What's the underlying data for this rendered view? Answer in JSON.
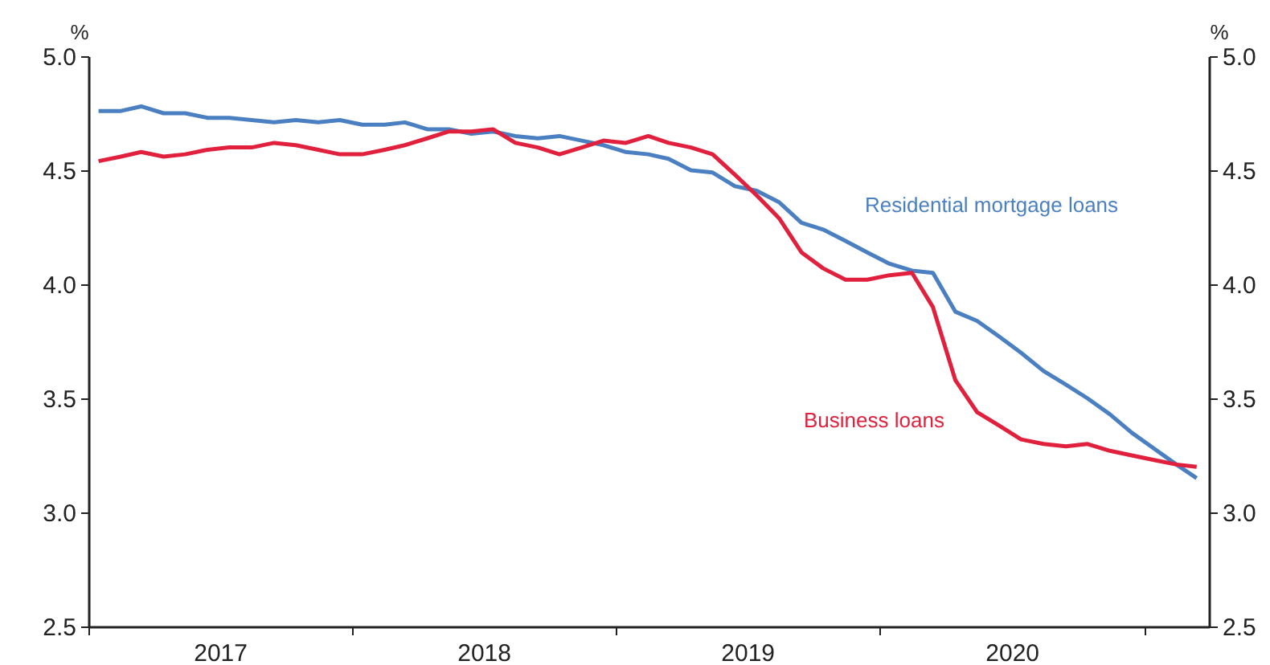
{
  "chart_data": {
    "type": "line",
    "x": [
      "2017-01-15",
      "2017-02-15",
      "2017-03-15",
      "2017-04-15",
      "2017-05-15",
      "2017-06-15",
      "2017-07-15",
      "2017-08-15",
      "2017-09-15",
      "2017-10-15",
      "2017-11-15",
      "2017-12-15",
      "2018-01-15",
      "2018-02-15",
      "2018-03-15",
      "2018-04-15",
      "2018-05-15",
      "2018-06-15",
      "2018-07-15",
      "2018-08-15",
      "2018-09-15",
      "2018-10-15",
      "2018-11-15",
      "2018-12-15",
      "2019-01-15",
      "2019-02-15",
      "2019-03-15",
      "2019-04-15",
      "2019-05-15",
      "2019-06-15",
      "2019-07-15",
      "2019-08-15",
      "2019-09-15",
      "2019-10-15",
      "2019-11-15",
      "2019-12-15",
      "2020-01-15",
      "2020-02-15",
      "2020-03-15",
      "2020-04-15",
      "2020-05-15",
      "2020-06-15",
      "2020-07-15",
      "2020-08-15",
      "2020-09-15",
      "2020-10-15",
      "2020-11-15",
      "2020-12-15",
      "2021-01-15",
      "2021-02-15",
      "2021-03-15"
    ],
    "series": [
      {
        "name": "Residential mortgage loans",
        "color": "#4a7fc1",
        "values": [
          4.76,
          4.76,
          4.78,
          4.75,
          4.75,
          4.73,
          4.73,
          4.72,
          4.71,
          4.72,
          4.71,
          4.72,
          4.7,
          4.7,
          4.71,
          4.68,
          4.68,
          4.66,
          4.67,
          4.65,
          4.64,
          4.65,
          4.63,
          4.61,
          4.58,
          4.57,
          4.55,
          4.5,
          4.49,
          4.43,
          4.41,
          4.36,
          4.27,
          4.24,
          4.19,
          4.14,
          4.09,
          4.06,
          4.05,
          3.88,
          3.84,
          3.77,
          3.7,
          3.62,
          3.56,
          3.5,
          3.43,
          3.35,
          3.28,
          3.21,
          3.15
        ]
      },
      {
        "name": "Business loans",
        "color": "#e0203c",
        "values": [
          4.54,
          4.56,
          4.58,
          4.56,
          4.57,
          4.59,
          4.6,
          4.6,
          4.62,
          4.61,
          4.59,
          4.57,
          4.57,
          4.59,
          4.61,
          4.64,
          4.67,
          4.67,
          4.68,
          4.62,
          4.6,
          4.57,
          4.6,
          4.63,
          4.62,
          4.65,
          4.62,
          4.6,
          4.57,
          4.48,
          4.39,
          4.29,
          4.14,
          4.07,
          4.02,
          4.02,
          4.04,
          4.05,
          3.9,
          3.58,
          3.44,
          3.38,
          3.32,
          3.3,
          3.29,
          3.3,
          3.27,
          3.25,
          3.23,
          3.21,
          3.2
        ]
      }
    ],
    "ylabel": "%",
    "y2label": "%",
    "xlim": [
      "2017-01-01",
      "2021-04-01"
    ],
    "xticks": [
      {
        "value": "2017-01-01",
        "label": null
      },
      {
        "value": "2017-07-02",
        "label": "2017"
      },
      {
        "value": "2018-01-01",
        "label": null
      },
      {
        "value": "2018-07-02",
        "label": "2018"
      },
      {
        "value": "2019-01-01",
        "label": null
      },
      {
        "value": "2019-07-02",
        "label": "2019"
      },
      {
        "value": "2020-01-01",
        "label": null
      },
      {
        "value": "2020-07-02",
        "label": "2020"
      },
      {
        "value": "2021-01-01",
        "label": null
      }
    ],
    "ylim": [
      2.5,
      5
    ],
    "yticks": [
      2.5,
      {
        "value": 3,
        "label": "3.0"
      },
      3.5,
      {
        "value": 4,
        "label": "4.0"
      },
      4.5,
      {
        "value": 5,
        "label": "5.0"
      }
    ],
    "y2lim": [
      2.5,
      5
    ],
    "y2ticks": [
      2.5,
      {
        "value": 3,
        "label": "3.0"
      },
      3.5,
      {
        "value": 4,
        "label": "4.0"
      },
      4.5,
      {
        "value": 5,
        "label": "5.0"
      }
    ],
    "grid": false
  }
}
